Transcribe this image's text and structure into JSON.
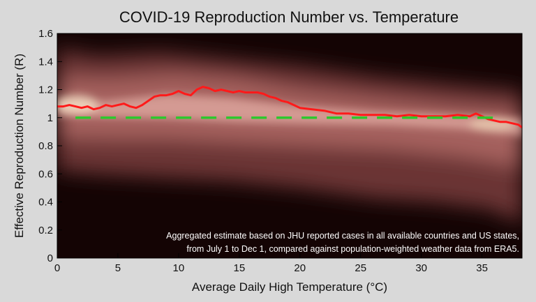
{
  "chart_data": {
    "type": "line",
    "title": "COVID-19 Reproduction Number vs. Temperature",
    "xlabel": "Average Daily High Temperature (°C)",
    "ylabel": "Effective Reproduction Number (R)",
    "xlim": [
      0,
      38.3
    ],
    "ylim": [
      0,
      1.6
    ],
    "xticks": [
      0,
      5,
      10,
      15,
      20,
      25,
      30,
      35
    ],
    "yticks": [
      0,
      0.2,
      0.4,
      0.6,
      0.8,
      1,
      1.2,
      1.4,
      1.6
    ],
    "grid": false,
    "background": "density heatmap",
    "annotation": [
      "Aggregated estimate based on JHU reported cases in all available countries and US states,",
      "from July 1 to Dec 1, compared against population-weighted weather data from ERA5."
    ],
    "series": [
      {
        "color": "#ff1a1a",
        "style": "solid",
        "x": [
          0,
          0.5,
          1,
          1.5,
          2,
          2.5,
          3,
          3.5,
          4,
          4.5,
          5,
          5.5,
          6,
          6.5,
          7,
          7.5,
          8,
          8.5,
          9,
          9.5,
          10,
          10.5,
          11,
          11.5,
          12,
          12.5,
          13,
          13.5,
          14,
          14.5,
          15,
          15.5,
          16,
          16.5,
          17,
          17.5,
          18,
          18.5,
          19,
          19.5,
          20,
          21,
          22,
          23,
          24,
          25,
          26,
          27,
          28,
          29,
          30,
          31,
          32,
          33,
          34,
          34.5,
          35,
          35.5,
          36,
          36.5,
          37,
          37.5,
          38,
          38.3
        ],
        "y": [
          1.08,
          1.08,
          1.09,
          1.08,
          1.07,
          1.08,
          1.06,
          1.07,
          1.09,
          1.08,
          1.09,
          1.1,
          1.08,
          1.07,
          1.09,
          1.12,
          1.15,
          1.16,
          1.16,
          1.17,
          1.19,
          1.17,
          1.16,
          1.2,
          1.22,
          1.21,
          1.19,
          1.2,
          1.19,
          1.18,
          1.19,
          1.18,
          1.18,
          1.18,
          1.17,
          1.15,
          1.14,
          1.12,
          1.11,
          1.09,
          1.07,
          1.06,
          1.05,
          1.03,
          1.03,
          1.02,
          1.02,
          1.02,
          1.01,
          1.02,
          1.01,
          1.01,
          1.01,
          1.02,
          1.01,
          1.03,
          1.01,
          0.99,
          0.98,
          0.97,
          0.97,
          0.96,
          0.95,
          0.93
        ]
      },
      {
        "color": "#2ec82e",
        "style": "dashed",
        "x": [
          1.5,
          36.5
        ],
        "y": [
          1,
          1
        ]
      }
    ]
  }
}
